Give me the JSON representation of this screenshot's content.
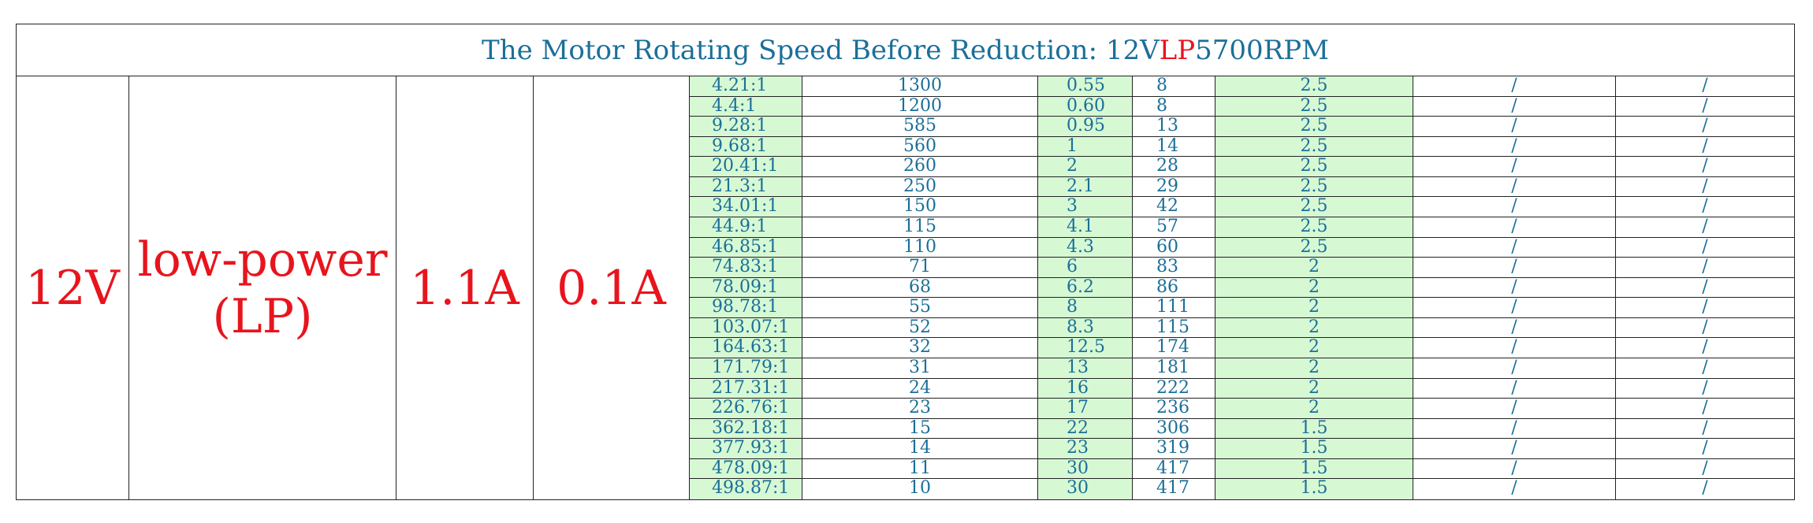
{
  "header": {
    "prefix": "The Motor Rotating Speed Before Reduction: 12V ",
    "highlight": "LP",
    "suffix": " 5700RPM"
  },
  "colors": {
    "text_blue": "#1b6f98",
    "accent_red": "#e8141d",
    "highlight_green": "#d6f9d4",
    "border": "#222222"
  },
  "voltage": "12V",
  "power_type": "low-power\n(LP)",
  "current_1": "1.1A",
  "current_2": "0.1A",
  "rows": [
    [
      "4.21:1",
      "1300",
      "0.55",
      "8",
      "2.5",
      "/",
      "/"
    ],
    [
      "4.4:1",
      "1200",
      "0.60",
      "8",
      "2.5",
      "/",
      "/"
    ],
    [
      "9.28:1",
      "585",
      "0.95",
      "13",
      "2.5",
      "/",
      "/"
    ],
    [
      "9.68:1",
      "560",
      "1",
      "14",
      "2.5",
      "/",
      "/"
    ],
    [
      "20.41:1",
      "260",
      "2",
      "28",
      "2.5",
      "/",
      "/"
    ],
    [
      "21.3:1",
      "250",
      "2.1",
      "29",
      "2.5",
      "/",
      "/"
    ],
    [
      "34.01:1",
      "150",
      "3",
      "42",
      "2.5",
      "/",
      "/"
    ],
    [
      "44.9:1",
      "115",
      "4.1",
      "57",
      "2.5",
      "/",
      "/"
    ],
    [
      "46.85:1",
      "110",
      "4.3",
      "60",
      "2.5",
      "/",
      "/"
    ],
    [
      "74.83:1",
      "71",
      "6",
      "83",
      "2",
      "/",
      "/"
    ],
    [
      "78.09:1",
      "68",
      "6.2",
      "86",
      "2",
      "/",
      "/"
    ],
    [
      "98.78:1",
      "55",
      "8",
      "111",
      "2",
      "/",
      "/"
    ],
    [
      "103.07:1",
      "52",
      "8.3",
      "115",
      "2",
      "/",
      "/"
    ],
    [
      "164.63:1",
      "32",
      "12.5",
      "174",
      "2",
      "/",
      "/"
    ],
    [
      "171.79:1",
      "31",
      "13",
      "181",
      "2",
      "/",
      "/"
    ],
    [
      "217.31:1",
      "24",
      "16",
      "222",
      "2",
      "/",
      "/"
    ],
    [
      "226.76:1",
      "23",
      "17",
      "236",
      "2",
      "/",
      "/"
    ],
    [
      "362.18:1",
      "15",
      "22",
      "306",
      "1.5",
      "/",
      "/"
    ],
    [
      "377.93:1",
      "14",
      "23",
      "319",
      "1.5",
      "/",
      "/"
    ],
    [
      "478.09:1",
      "11",
      "30",
      "417",
      "1.5",
      "/",
      "/"
    ],
    [
      "498.87:1",
      "10",
      "30",
      "417",
      "1.5",
      "/",
      "/"
    ]
  ]
}
